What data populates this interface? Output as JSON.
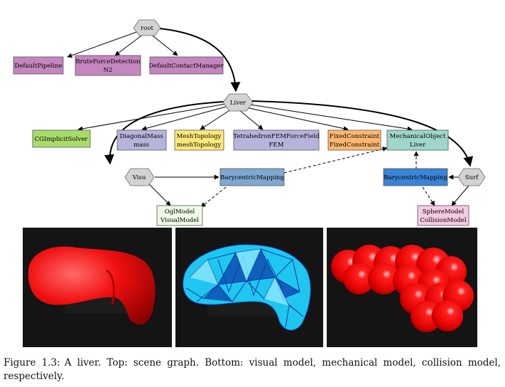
{
  "scene_graph": {
    "root": "root",
    "default_pipeline": "DefaultPipeline",
    "brute_force_line1": "BruteForceDetection",
    "brute_force_line2": "N2",
    "default_contact_manager": "DefaultContactManager",
    "liver": "Liver",
    "cg_solver": "CGImplicitSolver",
    "diagonal_mass_line1": "DiagonalMass",
    "diagonal_mass_line2": "mass",
    "mesh_topology_line1": "MeshTopology",
    "mesh_topology_line2": "meshTopology",
    "fem_line1": "TetrahedronFEMForceField",
    "fem_line2": "FEM",
    "fixed_constraint_line1": "FixedConstraint",
    "fixed_constraint_line2": "FixedConstraint",
    "mechanical_object_line1": "MechanicalObject",
    "mechanical_object_line2": "Liver",
    "visu": "Visu",
    "barycentric_visu": "BarycentricMapping",
    "barycentric_surf": "BarycentricMapping",
    "surf": "Surf",
    "ogl_model_line1": "OglModel",
    "ogl_model_line2": "VisualModel",
    "sphere_model_line1": "SphereModel",
    "sphere_model_line2": "CollisionModel"
  },
  "colors": {
    "hexagon": "#d3d3d3",
    "pipeline_components": "#c586c0",
    "solver": "#a8dc6a",
    "mass": "#b7b4dc",
    "topology": "#ffe97a",
    "forcefield": "#b7b4dc",
    "constraint": "#ffb870",
    "mechanical_object": "#9fd6cc",
    "mapping_visu": "#7fa8d0",
    "mapping_surf": "#3b83d6",
    "visual_model": "#eefae8",
    "collision_model": "#f6c9e4"
  },
  "caption": {
    "label": "Figure 1.3:",
    "text": "A liver.  Top: scene graph.  Bottom: visual model, mechanical model, collision model, respectively."
  }
}
